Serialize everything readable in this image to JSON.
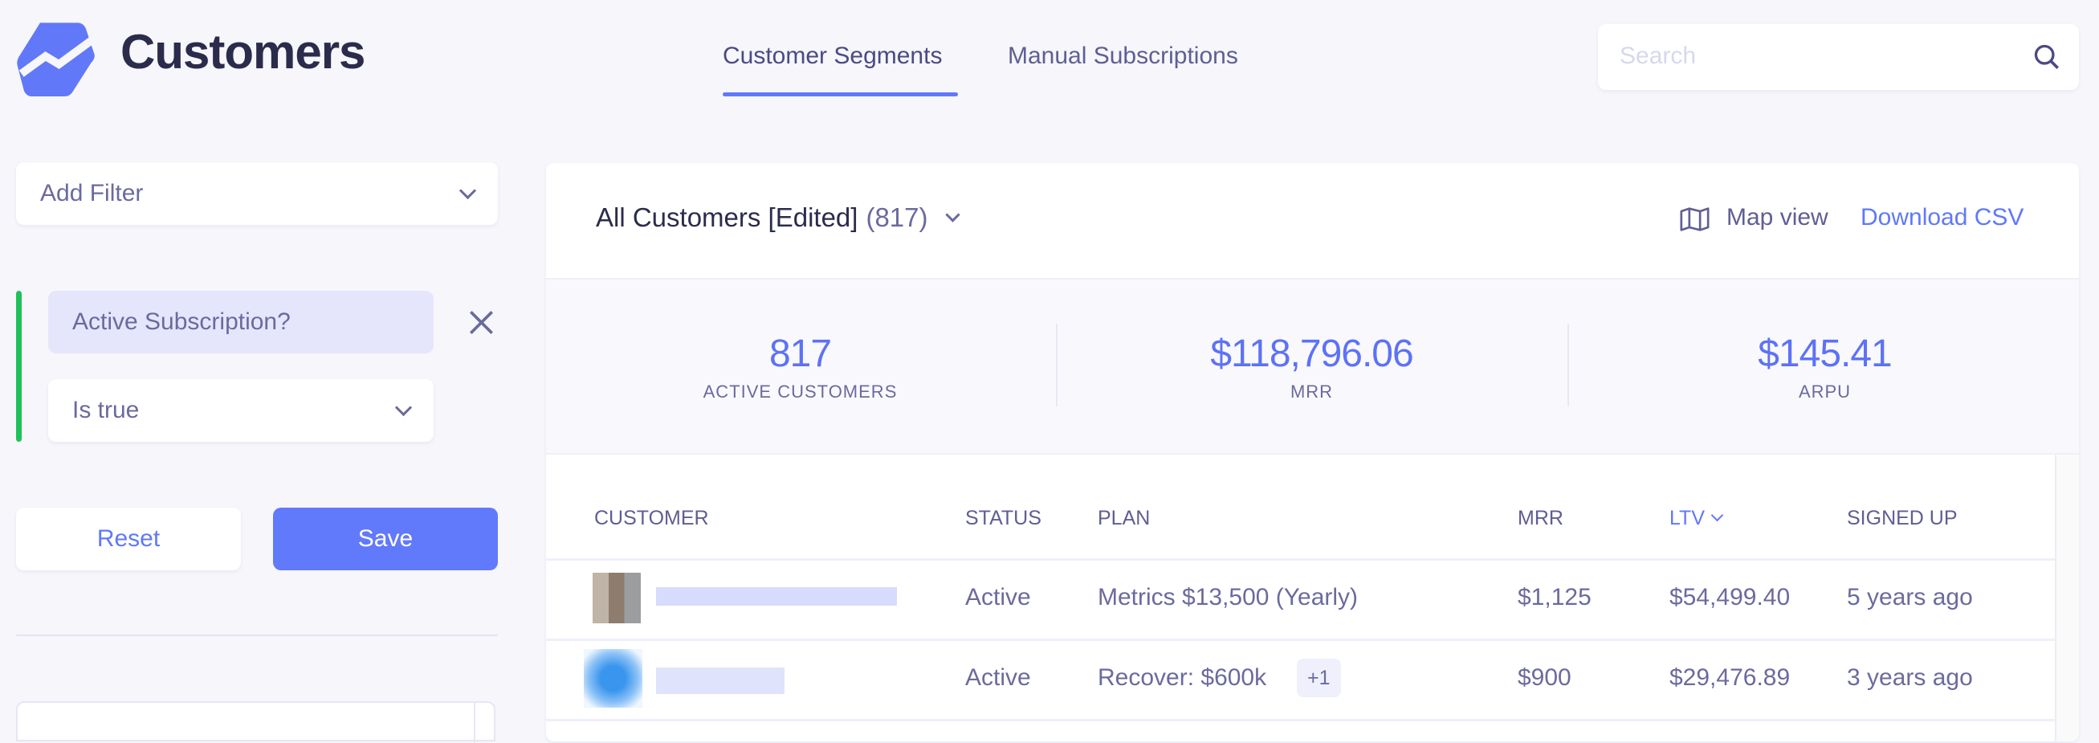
{
  "header": {
    "title": "Customers",
    "tabs": [
      {
        "label": "Customer Segments",
        "active": true
      },
      {
        "label": "Manual Subscriptions",
        "active": false
      }
    ],
    "search": {
      "placeholder": "Search",
      "value": ""
    }
  },
  "sidebar": {
    "add_filter": "Add Filter",
    "filter": {
      "field": "Active Subscription?",
      "condition": "Is true"
    },
    "reset": "Reset",
    "save": "Save"
  },
  "segment": {
    "title": "All Customers [Edited]",
    "count": "(817)",
    "map_view": "Map view",
    "download": "Download CSV"
  },
  "stats": [
    {
      "value": "817",
      "label": "ACTIVE CUSTOMERS"
    },
    {
      "value": "$118,796.06",
      "label": "MRR"
    },
    {
      "value": "$145.41",
      "label": "ARPU"
    }
  ],
  "table": {
    "columns": [
      "CUSTOMER",
      "STATUS",
      "PLAN",
      "MRR",
      "LTV",
      "SIGNED UP"
    ],
    "sorted_column": "LTV",
    "rows": [
      {
        "status": "Active",
        "plan": "Metrics $13,500 (Yearly)",
        "plan_extra": "",
        "mrr": "$1,125",
        "ltv": "$54,499.40",
        "signed_up": "5 years ago"
      },
      {
        "status": "Active",
        "plan": "Recover: $600k",
        "plan_extra": "+1",
        "mrr": "$900",
        "ltv": "$29,476.89",
        "signed_up": "3 years ago"
      }
    ]
  },
  "colors": {
    "accent": "#6178f9",
    "active_filter": "#1fc15b",
    "text": "#6b6a9e",
    "title": "#2b2c4c"
  }
}
